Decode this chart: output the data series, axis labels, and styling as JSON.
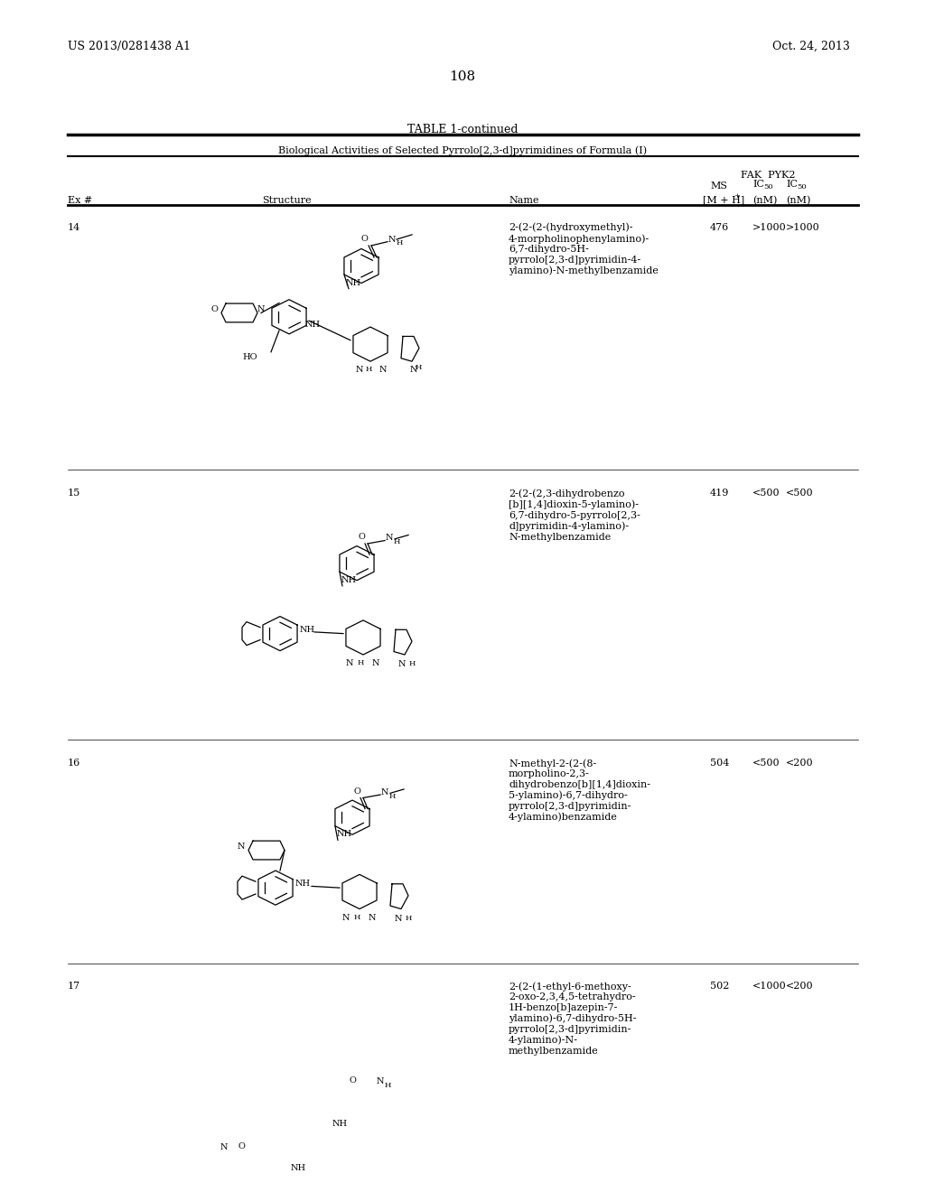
{
  "background_color": "#ffffff",
  "page_number": "108",
  "left_header": "US 2013/0281438 A1",
  "right_header": "Oct. 24, 2013",
  "table_title": "TABLE 1-continued",
  "table_subtitle": "Biological Activities of Selected Pyrrolo[2,3-d]pyrimidines of Formula (I)",
  "col_headers": [
    "Ex #",
    "Structure",
    "Name",
    "MS\n[M + H]⁺",
    "FAK\nIC₅₀\n(nM)",
    "PYK2\nIC₅₀\n(nM)"
  ],
  "rows": [
    {
      "ex": "14",
      "name": "2-(2-(2-(hydroxymethyl)-\n4-morpholinophenylamino)-\n6,7-dihydro-5H-\npyrrolo[2,3-d]pyrimidin-4-\nylamino)-N-methylbenzamide",
      "ms": "476",
      "fak": ">1000",
      "pyk2": ">1000"
    },
    {
      "ex": "15",
      "name": "2-(2-(2,3-dihydrobenzo\n[b][1,4]dioxin-5-ylamino)-\n6,7-dihydro-5-pyrrolo[2,3-\nd]pyrimidin-4-ylamino)-\nN-methylbenzamide",
      "ms": "419",
      "fak": "<500",
      "pyk2": "<500"
    },
    {
      "ex": "16",
      "name": "N-methyl-2-(2-(8-\nmorpholino-2,3-\ndihydrobenzo[b][1,4]dioxin-\n5-ylamino)-6,7-dihydro-\npyrrolo[2,3-d]pyrimidin-\n4-ylamino)benzamide",
      "ms": "504",
      "fak": "<500",
      "pyk2": "<200"
    },
    {
      "ex": "17",
      "name": "2-(2-(1-ethyl-6-methoxy-\n2-oxo-2,3,4,5-tetrahydro-\n1H-benzo[b]azepin-7-\nylamino)-6,7-dihydro-5H-\npyrrolo[2,3-d]pyrimidin-\n4-ylamino)-N-\nmethylbenzamide",
      "ms": "502",
      "fak": "<1000",
      "pyk2": "<200"
    }
  ],
  "font_family": "serif",
  "header_fontsize": 9,
  "body_fontsize": 8,
  "title_fontsize": 9
}
